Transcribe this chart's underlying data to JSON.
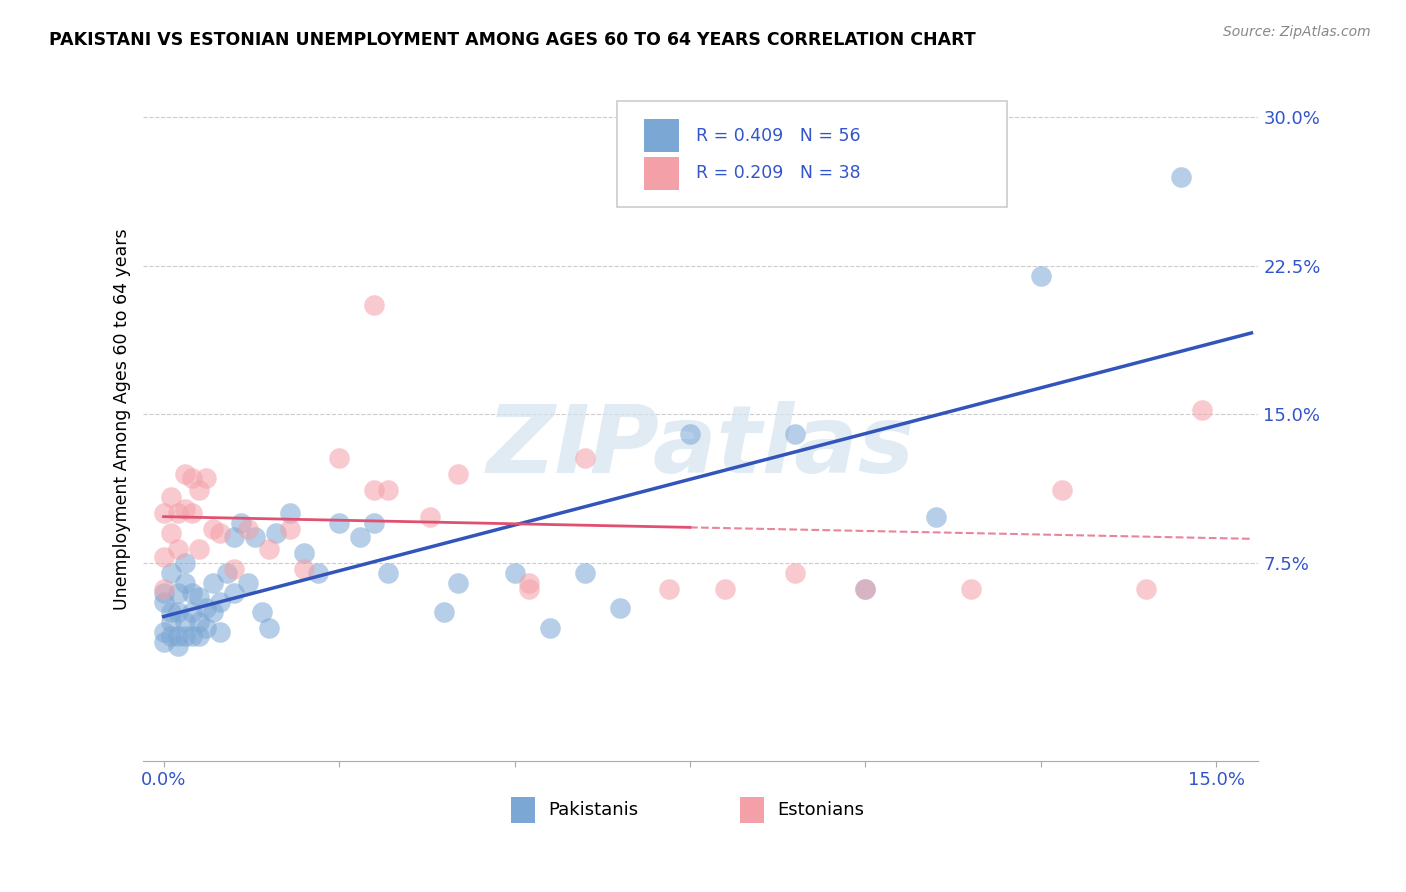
{
  "title": "PAKISTANI VS ESTONIAN UNEMPLOYMENT AMONG AGES 60 TO 64 YEARS CORRELATION CHART",
  "source": "Source: ZipAtlas.com",
  "ylabel": "Unemployment Among Ages 60 to 64 years",
  "xlim": [
    -0.003,
    0.156
  ],
  "ylim": [
    -0.025,
    0.32
  ],
  "yticks": [
    0.075,
    0.15,
    0.225,
    0.3
  ],
  "ytick_labels": [
    "7.5%",
    "15.0%",
    "22.5%",
    "30.0%"
  ],
  "xticks": [
    0.0,
    0.025,
    0.05,
    0.075,
    0.1,
    0.125,
    0.15
  ],
  "xtick_labels": [
    "0.0%",
    "",
    "",
    "",
    "",
    "",
    "15.0%"
  ],
  "R_blue": 0.409,
  "N_blue": 56,
  "R_pink": 0.209,
  "N_pink": 38,
  "blue_fill": "#7BA7D4",
  "pink_fill": "#F4A0A8",
  "trend_blue": "#3355BB",
  "trend_pink": "#E05070",
  "watermark": "ZIPatlas",
  "legend_r1_text": "R = 0.409   N = 56",
  "legend_r2_text": "R = 0.209   N = 38",
  "pakistani_x": [
    0.0,
    0.0,
    0.0,
    0.0,
    0.001,
    0.001,
    0.001,
    0.001,
    0.002,
    0.002,
    0.002,
    0.002,
    0.003,
    0.003,
    0.003,
    0.003,
    0.004,
    0.004,
    0.004,
    0.005,
    0.005,
    0.005,
    0.006,
    0.006,
    0.007,
    0.007,
    0.008,
    0.008,
    0.009,
    0.01,
    0.01,
    0.011,
    0.012,
    0.013,
    0.014,
    0.015,
    0.016,
    0.018,
    0.02,
    0.022,
    0.025,
    0.028,
    0.03,
    0.032,
    0.04,
    0.042,
    0.05,
    0.055,
    0.06,
    0.065,
    0.075,
    0.09,
    0.1,
    0.11,
    0.125,
    0.145
  ],
  "pakistani_y": [
    0.055,
    0.06,
    0.04,
    0.035,
    0.07,
    0.05,
    0.045,
    0.038,
    0.06,
    0.05,
    0.038,
    0.033,
    0.075,
    0.065,
    0.045,
    0.038,
    0.06,
    0.05,
    0.038,
    0.058,
    0.045,
    0.038,
    0.052,
    0.042,
    0.065,
    0.05,
    0.055,
    0.04,
    0.07,
    0.06,
    0.088,
    0.095,
    0.065,
    0.088,
    0.05,
    0.042,
    0.09,
    0.1,
    0.08,
    0.07,
    0.095,
    0.088,
    0.095,
    0.07,
    0.05,
    0.065,
    0.07,
    0.042,
    0.07,
    0.052,
    0.14,
    0.14,
    0.062,
    0.098,
    0.22,
    0.27
  ],
  "estonian_x": [
    0.0,
    0.0,
    0.0,
    0.001,
    0.001,
    0.002,
    0.002,
    0.003,
    0.003,
    0.004,
    0.004,
    0.005,
    0.005,
    0.006,
    0.007,
    0.008,
    0.01,
    0.012,
    0.015,
    0.018,
    0.02,
    0.025,
    0.03,
    0.032,
    0.038,
    0.042,
    0.052,
    0.06,
    0.072,
    0.08,
    0.09,
    0.1,
    0.115,
    0.128,
    0.14,
    0.148,
    0.03,
    0.052
  ],
  "estonian_y": [
    0.062,
    0.078,
    0.1,
    0.09,
    0.108,
    0.082,
    0.1,
    0.102,
    0.12,
    0.1,
    0.118,
    0.082,
    0.112,
    0.118,
    0.092,
    0.09,
    0.072,
    0.092,
    0.082,
    0.092,
    0.072,
    0.128,
    0.112,
    0.112,
    0.098,
    0.12,
    0.062,
    0.128,
    0.062,
    0.062,
    0.07,
    0.062,
    0.062,
    0.112,
    0.062,
    0.152,
    0.205,
    0.065
  ]
}
